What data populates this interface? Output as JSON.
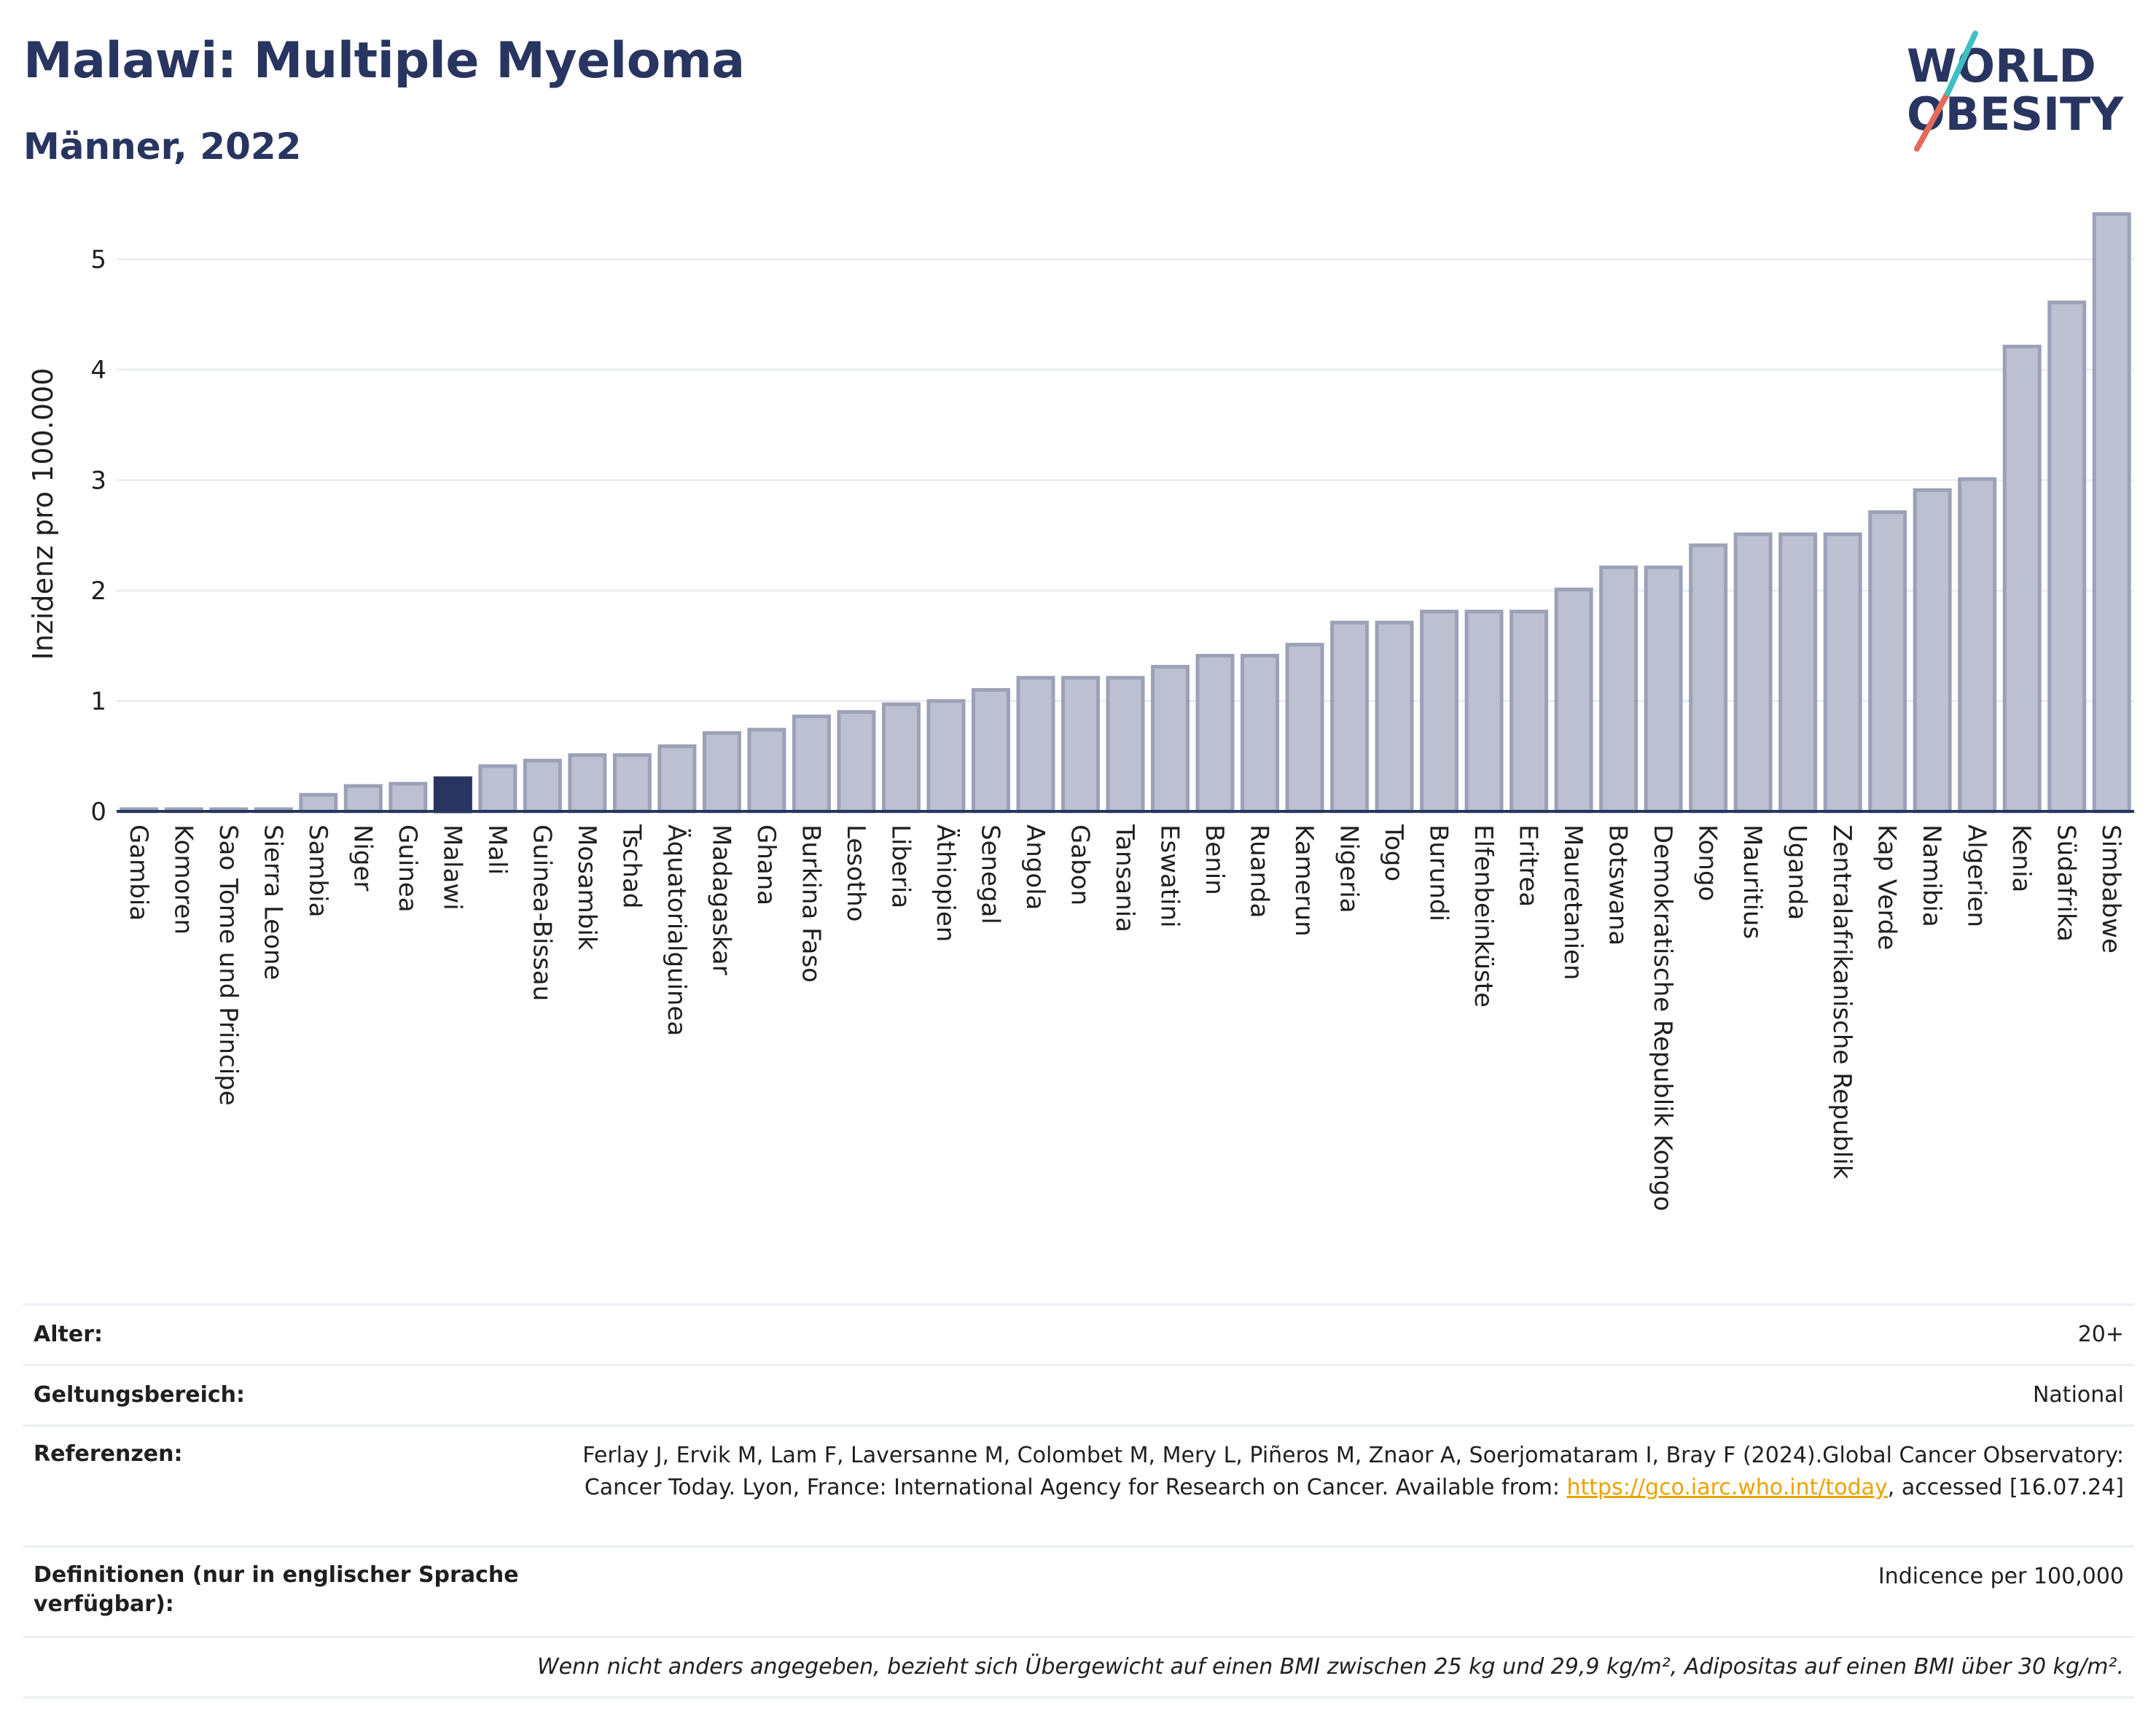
{
  "header": {
    "title": "Malawi: Multiple Myeloma",
    "subtitle": "Männer, 2022"
  },
  "logo": {
    "line1": "WORLD",
    "line2": "OBESITY",
    "colors": [
      "#283560",
      "#e46a5a",
      "#3fbfc4"
    ]
  },
  "colors": {
    "bar": "#bcc0d0",
    "bar_border": "#9ca1b8",
    "highlight": "#283560",
    "axis": "#283560",
    "grid": "#eceef4"
  },
  "chart_data": {
    "type": "bar",
    "title": "Malawi: Multiple Myeloma",
    "subtitle": "Männer, 2022",
    "ylabel": "Inzidenz pro 100.000",
    "xlabel": "",
    "ylim": [
      0,
      5.5
    ],
    "yticks": [
      0,
      1,
      2,
      3,
      4,
      5
    ],
    "grid": true,
    "highlight": "Malawi",
    "categories": [
      "Gambia",
      "Komoren",
      "Sao Tome und Principe",
      "Sierra Leone",
      "Sambia",
      "Niger",
      "Guinea",
      "Malawi",
      "Mali",
      "Guinea-Bissau",
      "Mosambik",
      "Tschad",
      "Äquatorialguinea",
      "Madagaskar",
      "Ghana",
      "Burkina Faso",
      "Lesotho",
      "Liberia",
      "Äthiopien",
      "Senegal",
      "Angola",
      "Gabon",
      "Tansania",
      "Eswatini",
      "Benin",
      "Ruanda",
      "Kamerun",
      "Nigeria",
      "Togo",
      "Burundi",
      "Elfenbeinküste",
      "Eritrea",
      "Mauretanien",
      "Botswana",
      "Demokratische Republik Kongo",
      "Kongo",
      "Mauritius",
      "Uganda",
      "Zentralafrikanische Republik",
      "Kap Verde",
      "Namibia",
      "Algerien",
      "Kenia",
      "Südafrika",
      "Simbabwe"
    ],
    "values": [
      0.02,
      0.02,
      0.02,
      0.02,
      0.15,
      0.23,
      0.25,
      0.3,
      0.41,
      0.46,
      0.51,
      0.51,
      0.59,
      0.71,
      0.74,
      0.86,
      0.9,
      0.97,
      1.0,
      1.1,
      1.21,
      1.21,
      1.21,
      1.31,
      1.41,
      1.41,
      1.51,
      1.71,
      1.71,
      1.81,
      1.81,
      1.81,
      2.01,
      2.21,
      2.21,
      2.41,
      2.51,
      2.51,
      2.51,
      2.71,
      2.91,
      3.01,
      4.21,
      4.61,
      5.41
    ]
  },
  "meta": {
    "rows": [
      {
        "key": "Alter:",
        "value": "20+"
      },
      {
        "key": "Geltungsbereich:",
        "value": "National"
      },
      {
        "key": "Definitionen (nur in englischer Sprache verfügbar):",
        "value": "Indicence per 100,000"
      }
    ],
    "references": {
      "key": "Referenzen:",
      "text_before": "Ferlay J, Ervik M, Lam F, Laversanne M, Colombet M, Mery L, Piñeros M, Znaor A, Soerjomataram I, Bray F (2024).Global Cancer Observatory: Cancer Today. Lyon, France: International Agency for Research on Cancer. Available from: ",
      "link": "https://gco.iarc.who.int/today",
      "text_after": ", accessed [16.07.24]"
    },
    "note": "Wenn nicht anders angegeben, bezieht sich Übergewicht auf einen BMI zwischen 25 kg und 29,9 kg/m², Adipositas auf einen BMI über 30 kg/m²."
  }
}
